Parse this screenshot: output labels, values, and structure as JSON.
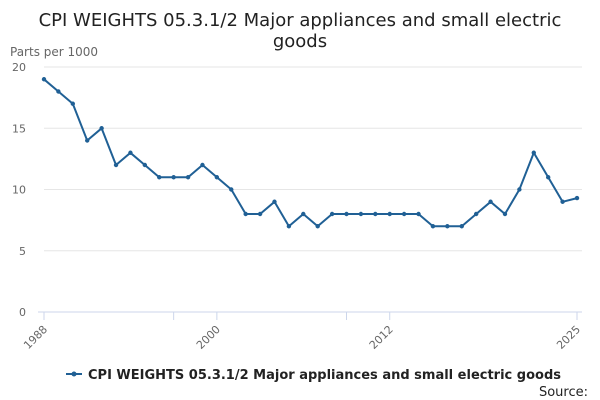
{
  "chart_data": {
    "type": "line",
    "title_lines": [
      "CPI WEIGHTS 05.3.1/2 Major appliances and small electric",
      "goods"
    ],
    "unit_label": "Parts per 1000",
    "x_tick_labels": [
      "1988",
      "2000",
      "2012",
      "2025"
    ],
    "y_tick_labels": [
      "0",
      "5",
      "10",
      "15",
      "20"
    ],
    "xlim": [
      1988,
      2025
    ],
    "ylim": [
      0,
      20
    ],
    "x_ticks": [
      1988,
      1997,
      2000,
      2009,
      2012,
      2025
    ],
    "y_ticks": [
      0,
      5,
      10,
      15,
      20
    ],
    "series": [
      {
        "name": "CPI WEIGHTS 05.3.1/2 Major appliances and small electric goods",
        "color": "#206095",
        "x": [
          1988,
          1989,
          1990,
          1991,
          1992,
          1993,
          1994,
          1995,
          1996,
          1997,
          1998,
          1999,
          2000,
          2001,
          2002,
          2003,
          2004,
          2005,
          2006,
          2007,
          2008,
          2009,
          2010,
          2011,
          2012,
          2013,
          2014,
          2015,
          2016,
          2017,
          2018,
          2019,
          2020,
          2021,
          2022,
          2023,
          2024,
          2025
        ],
        "values": [
          19,
          18,
          17,
          14,
          15,
          12,
          13,
          12,
          11,
          11,
          11,
          12,
          11,
          10,
          8,
          8,
          9,
          7,
          8,
          7,
          8,
          8,
          8,
          8,
          8,
          8,
          8,
          7,
          7,
          7,
          8,
          9,
          8,
          10,
          13,
          11,
          9,
          9.3
        ]
      }
    ],
    "source_label": "Source:"
  }
}
